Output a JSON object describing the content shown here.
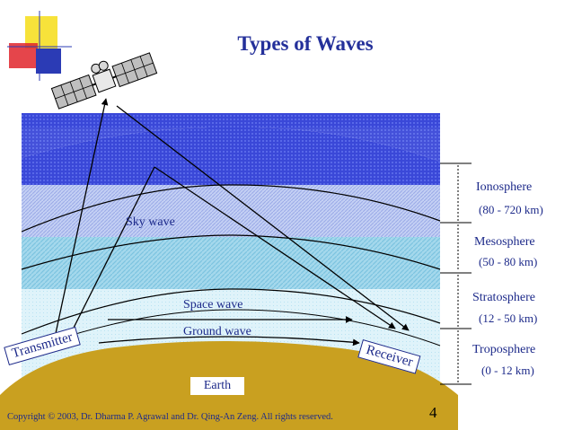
{
  "title": "Types of Waves",
  "waves": {
    "sky": "Sky wave",
    "space": "Space wave",
    "ground": "Ground wave"
  },
  "stations": {
    "transmitter": "Transmitter",
    "receiver": "Receiver"
  },
  "earth": "Earth",
  "layers": [
    {
      "name": "Ionosphere",
      "range": "(80 - 720 km)"
    },
    {
      "name": "Mesosphere",
      "range": "(50 - 80 km)"
    },
    {
      "name": "Stratosphere",
      "range": "(12 - 50 km)"
    },
    {
      "name": "Troposphere",
      "range": "(0 - 12 km)"
    }
  ],
  "footer": "Copyright © 2003, Dr. Dharma P. Agrawal and Dr. Qing-An Zeng. All rights reserved.",
  "page_number": "4",
  "colors": {
    "title": "#24309a",
    "ionosphere": "#3a48d8",
    "mesosphere": "#b8c8f0",
    "stratosphere": "#a8dcec",
    "troposphere": "#d8f0f8",
    "earth": "#c9a020",
    "logo_yellow": "#f7e23a",
    "logo_red": "#e0242c",
    "logo_blue": "#2b3bb5"
  },
  "icons": [
    "satellite-icon",
    "corner-logo-icon"
  ]
}
